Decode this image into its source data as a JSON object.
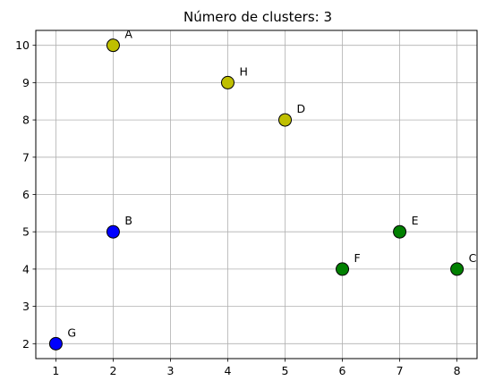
{
  "chart_data": {
    "type": "scatter",
    "title": "Número de clusters: 3",
    "xlabel": "",
    "ylabel": "",
    "xlim": [
      0.65,
      8.35
    ],
    "ylim": [
      1.6,
      10.4
    ],
    "xticks": [
      1,
      2,
      3,
      4,
      5,
      6,
      7,
      8
    ],
    "yticks": [
      2,
      3,
      4,
      5,
      6,
      7,
      8,
      9,
      10
    ],
    "grid": true,
    "legend": "none",
    "points": [
      {
        "label": "A",
        "x": 2,
        "y": 10,
        "color": "#bfbf00"
      },
      {
        "label": "B",
        "x": 2,
        "y": 5,
        "color": "#0000ff"
      },
      {
        "label": "C",
        "x": 8,
        "y": 4,
        "color": "#008000"
      },
      {
        "label": "D",
        "x": 5,
        "y": 8,
        "color": "#bfbf00"
      },
      {
        "label": "E",
        "x": 7,
        "y": 5,
        "color": "#008000"
      },
      {
        "label": "F",
        "x": 6,
        "y": 4,
        "color": "#008000"
      },
      {
        "label": "G",
        "x": 1,
        "y": 2,
        "color": "#0000ff"
      },
      {
        "label": "H",
        "x": 4,
        "y": 9,
        "color": "#bfbf00"
      }
    ]
  }
}
